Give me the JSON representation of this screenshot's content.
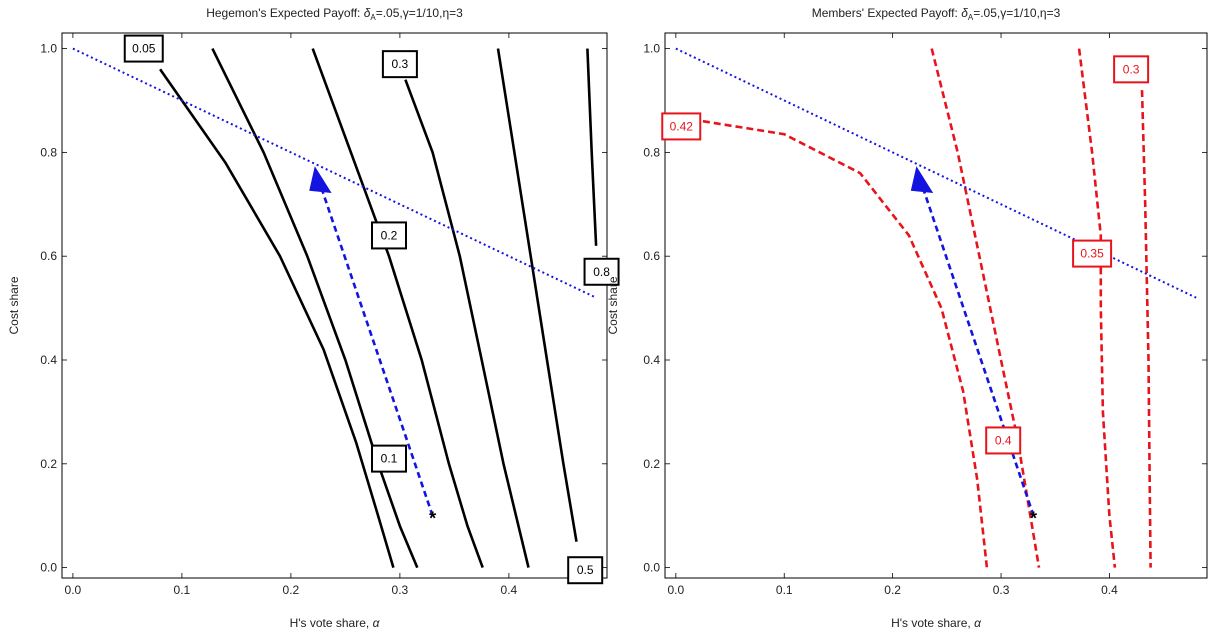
{
  "colors": {
    "frame": "#000000",
    "hegemon_contour": "#000000",
    "members_contour": "#e8141c",
    "path": "#1414e0",
    "budget_line": "#1414e0"
  },
  "chart_data": [
    {
      "type": "contour",
      "title_main": "Hegemon's Expected Payoff: ",
      "title_delta": "δ",
      "title_sub": "A",
      "title_rest": "=.05,γ=1/10,η=3",
      "xlabel_text": "H's vote share, ",
      "xlabel_sym": "α",
      "ylabel": "Cost share",
      "xlim": [
        -0.01,
        0.49
      ],
      "ylim": [
        -0.02,
        1.03
      ],
      "xticks": [
        "0.0",
        "0.1",
        "0.2",
        "0.3",
        "0.4"
      ],
      "xtick_values": [
        0,
        0.1,
        0.2,
        0.3,
        0.4
      ],
      "yticks": [
        "0.0",
        "0.2",
        "0.4",
        "0.6",
        "0.8",
        "1.0"
      ],
      "ytick_values": [
        0,
        0.2,
        0.4,
        0.6,
        0.8,
        1.0
      ],
      "contour_style": "solid",
      "contours": [
        {
          "points": [
            [
              0.08,
              0.96
            ],
            [
              0.14,
              0.78
            ],
            [
              0.19,
              0.6
            ],
            [
              0.23,
              0.42
            ],
            [
              0.26,
              0.24
            ],
            [
              0.28,
              0.1
            ],
            [
              0.294,
              0
            ]
          ]
        },
        {
          "points": [
            [
              0.128,
              1.0
            ],
            [
              0.175,
              0.8
            ],
            [
              0.215,
              0.6
            ],
            [
              0.25,
              0.4
            ],
            [
              0.28,
              0.2
            ],
            [
              0.3,
              0.08
            ],
            [
              0.316,
              0
            ]
          ]
        },
        {
          "points": [
            [
              0.22,
              1.0
            ],
            [
              0.255,
              0.8
            ],
            [
              0.29,
              0.6
            ],
            [
              0.32,
              0.4
            ],
            [
              0.345,
              0.2
            ],
            [
              0.362,
              0.08
            ],
            [
              0.376,
              0
            ]
          ]
        },
        {
          "points": [
            [
              0.305,
              0.94
            ],
            [
              0.33,
              0.8
            ],
            [
              0.355,
              0.6
            ],
            [
              0.375,
              0.4
            ],
            [
              0.395,
              0.2
            ],
            [
              0.418,
              0
            ]
          ]
        },
        {
          "points": [
            [
              0.39,
              1.0
            ],
            [
              0.405,
              0.8
            ],
            [
              0.42,
              0.6
            ],
            [
              0.435,
              0.4
            ],
            [
              0.45,
              0.2
            ],
            [
              0.462,
              0.05
            ]
          ]
        },
        {
          "points": [
            [
              0.472,
              1.0
            ],
            [
              0.476,
              0.8
            ],
            [
              0.48,
              0.62
            ]
          ]
        }
      ],
      "contour_labels": [
        {
          "text": "0.05",
          "x": 0.065,
          "y": 1.0
        },
        {
          "text": "0.3",
          "x": 0.3,
          "y": 0.97
        },
        {
          "text": "0.2",
          "x": 0.29,
          "y": 0.64
        },
        {
          "text": "0.8",
          "x": 0.485,
          "y": 0.57
        },
        {
          "text": "0.1",
          "x": 0.29,
          "y": 0.21
        },
        {
          "text": "0.5",
          "x": 0.47,
          "y": -0.005
        }
      ],
      "budget_line": {
        "points": [
          [
            0.0,
            1.0
          ],
          [
            0.48,
            0.52
          ]
        ]
      },
      "path": {
        "points": [
          [
            0.33,
            0.1
          ],
          [
            0.225,
            0.75
          ]
        ]
      },
      "arrowhead": {
        "x": 0.225,
        "y": 0.735
      },
      "star": {
        "text": "*",
        "x": 0.33,
        "y": 0.1
      }
    },
    {
      "type": "contour",
      "title_main": "Members' Expected Payoff: ",
      "title_delta": "δ",
      "title_sub": "A",
      "title_rest": "=.05,γ=1/10,η=3",
      "xlabel_text": "H's vote share, ",
      "xlabel_sym": "α",
      "ylabel": "Cost share",
      "xlim": [
        -0.01,
        0.49
      ],
      "ylim": [
        -0.02,
        1.03
      ],
      "xticks": [
        "0.0",
        "0.1",
        "0.2",
        "0.3",
        "0.4"
      ],
      "xtick_values": [
        0,
        0.1,
        0.2,
        0.3,
        0.4
      ],
      "yticks": [
        "0.0",
        "0.2",
        "0.4",
        "0.6",
        "0.8",
        "1.0"
      ],
      "ytick_values": [
        0,
        0.2,
        0.4,
        0.6,
        0.8,
        1.0
      ],
      "contour_style": "dashed",
      "contours": [
        {
          "points": [
            [
              0.025,
              0.86
            ],
            [
              0.1,
              0.835
            ],
            [
              0.17,
              0.76
            ],
            [
              0.215,
              0.64
            ],
            [
              0.245,
              0.5
            ],
            [
              0.265,
              0.34
            ],
            [
              0.278,
              0.17
            ],
            [
              0.287,
              0
            ]
          ]
        },
        {
          "points": [
            [
              0.236,
              1.0
            ],
            [
              0.26,
              0.8
            ],
            [
              0.28,
              0.6
            ],
            [
              0.3,
              0.4
            ],
            [
              0.315,
              0.25
            ],
            [
              0.335,
              0
            ]
          ]
        },
        {
          "points": [
            [
              0.372,
              1.0
            ],
            [
              0.384,
              0.8
            ],
            [
              0.392,
              0.64
            ],
            [
              0.392,
              0.5
            ],
            [
              0.394,
              0.3
            ],
            [
              0.4,
              0.1
            ],
            [
              0.405,
              0
            ]
          ]
        },
        {
          "points": [
            [
              0.43,
              0.92
            ],
            [
              0.433,
              0.7
            ],
            [
              0.436,
              0.4
            ],
            [
              0.437,
              0.2
            ],
            [
              0.438,
              0
            ]
          ]
        }
      ],
      "contour_labels": [
        {
          "text": "0.42",
          "x": 0.005,
          "y": 0.85
        },
        {
          "text": "0.3",
          "x": 0.42,
          "y": 0.96
        },
        {
          "text": "0.35",
          "x": 0.384,
          "y": 0.605
        },
        {
          "text": "0.4",
          "x": 0.302,
          "y": 0.245
        }
      ],
      "budget_line": {
        "points": [
          [
            0.0,
            1.0
          ],
          [
            0.48,
            0.52
          ]
        ]
      },
      "path": {
        "points": [
          [
            0.33,
            0.1
          ],
          [
            0.225,
            0.75
          ]
        ]
      },
      "arrowhead": {
        "x": 0.225,
        "y": 0.735
      },
      "star": {
        "text": "*",
        "x": 0.33,
        "y": 0.1
      }
    }
  ]
}
